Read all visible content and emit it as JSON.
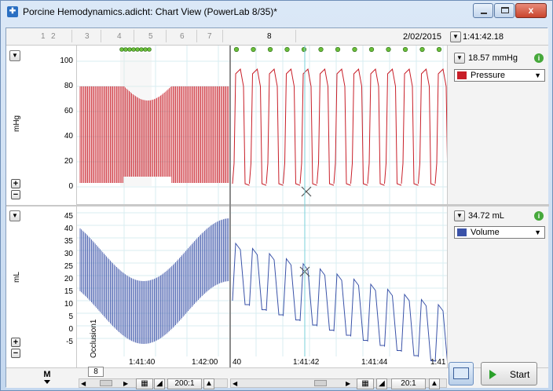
{
  "window": {
    "title": "Porcine Hemodynamics.adicht: Chart View (PowerLab 8/35)*",
    "close_glyph": "x"
  },
  "blocks": [
    "1",
    "2",
    "3",
    "4",
    "5",
    "6",
    "7",
    "8"
  ],
  "header": {
    "date": "2/02/2015",
    "time": "1:41:42.18"
  },
  "channels": [
    {
      "unit": "mHg",
      "readout": "18.57 mmHg",
      "name": "Pressure",
      "color": "#c81e28",
      "ticks": [
        "100",
        "80",
        "60",
        "40",
        "20",
        "0"
      ]
    },
    {
      "unit": "mL",
      "readout": "34.72 mL",
      "name": "Volume",
      "color": "#3a52a8",
      "ticks": [
        "45",
        "40",
        "35",
        "30",
        "25",
        "20",
        "15",
        "10",
        "5",
        "0",
        "-5"
      ]
    }
  ],
  "comment": "Occlusion1",
  "xaxis_left": {
    "ticks": [
      "1:41:40",
      "1:42:00"
    ]
  },
  "xaxis_right": {
    "ticks": [
      "40",
      "1:41:42",
      "1:41:44",
      "1:41"
    ]
  },
  "controls": {
    "page_number": "8",
    "zoom_left": "200:1",
    "zoom_right": "20:1",
    "start_label": "Start",
    "marker_label": "M",
    "plus": "+",
    "minus": "−",
    "dropdown_arrow": "▼"
  }
}
